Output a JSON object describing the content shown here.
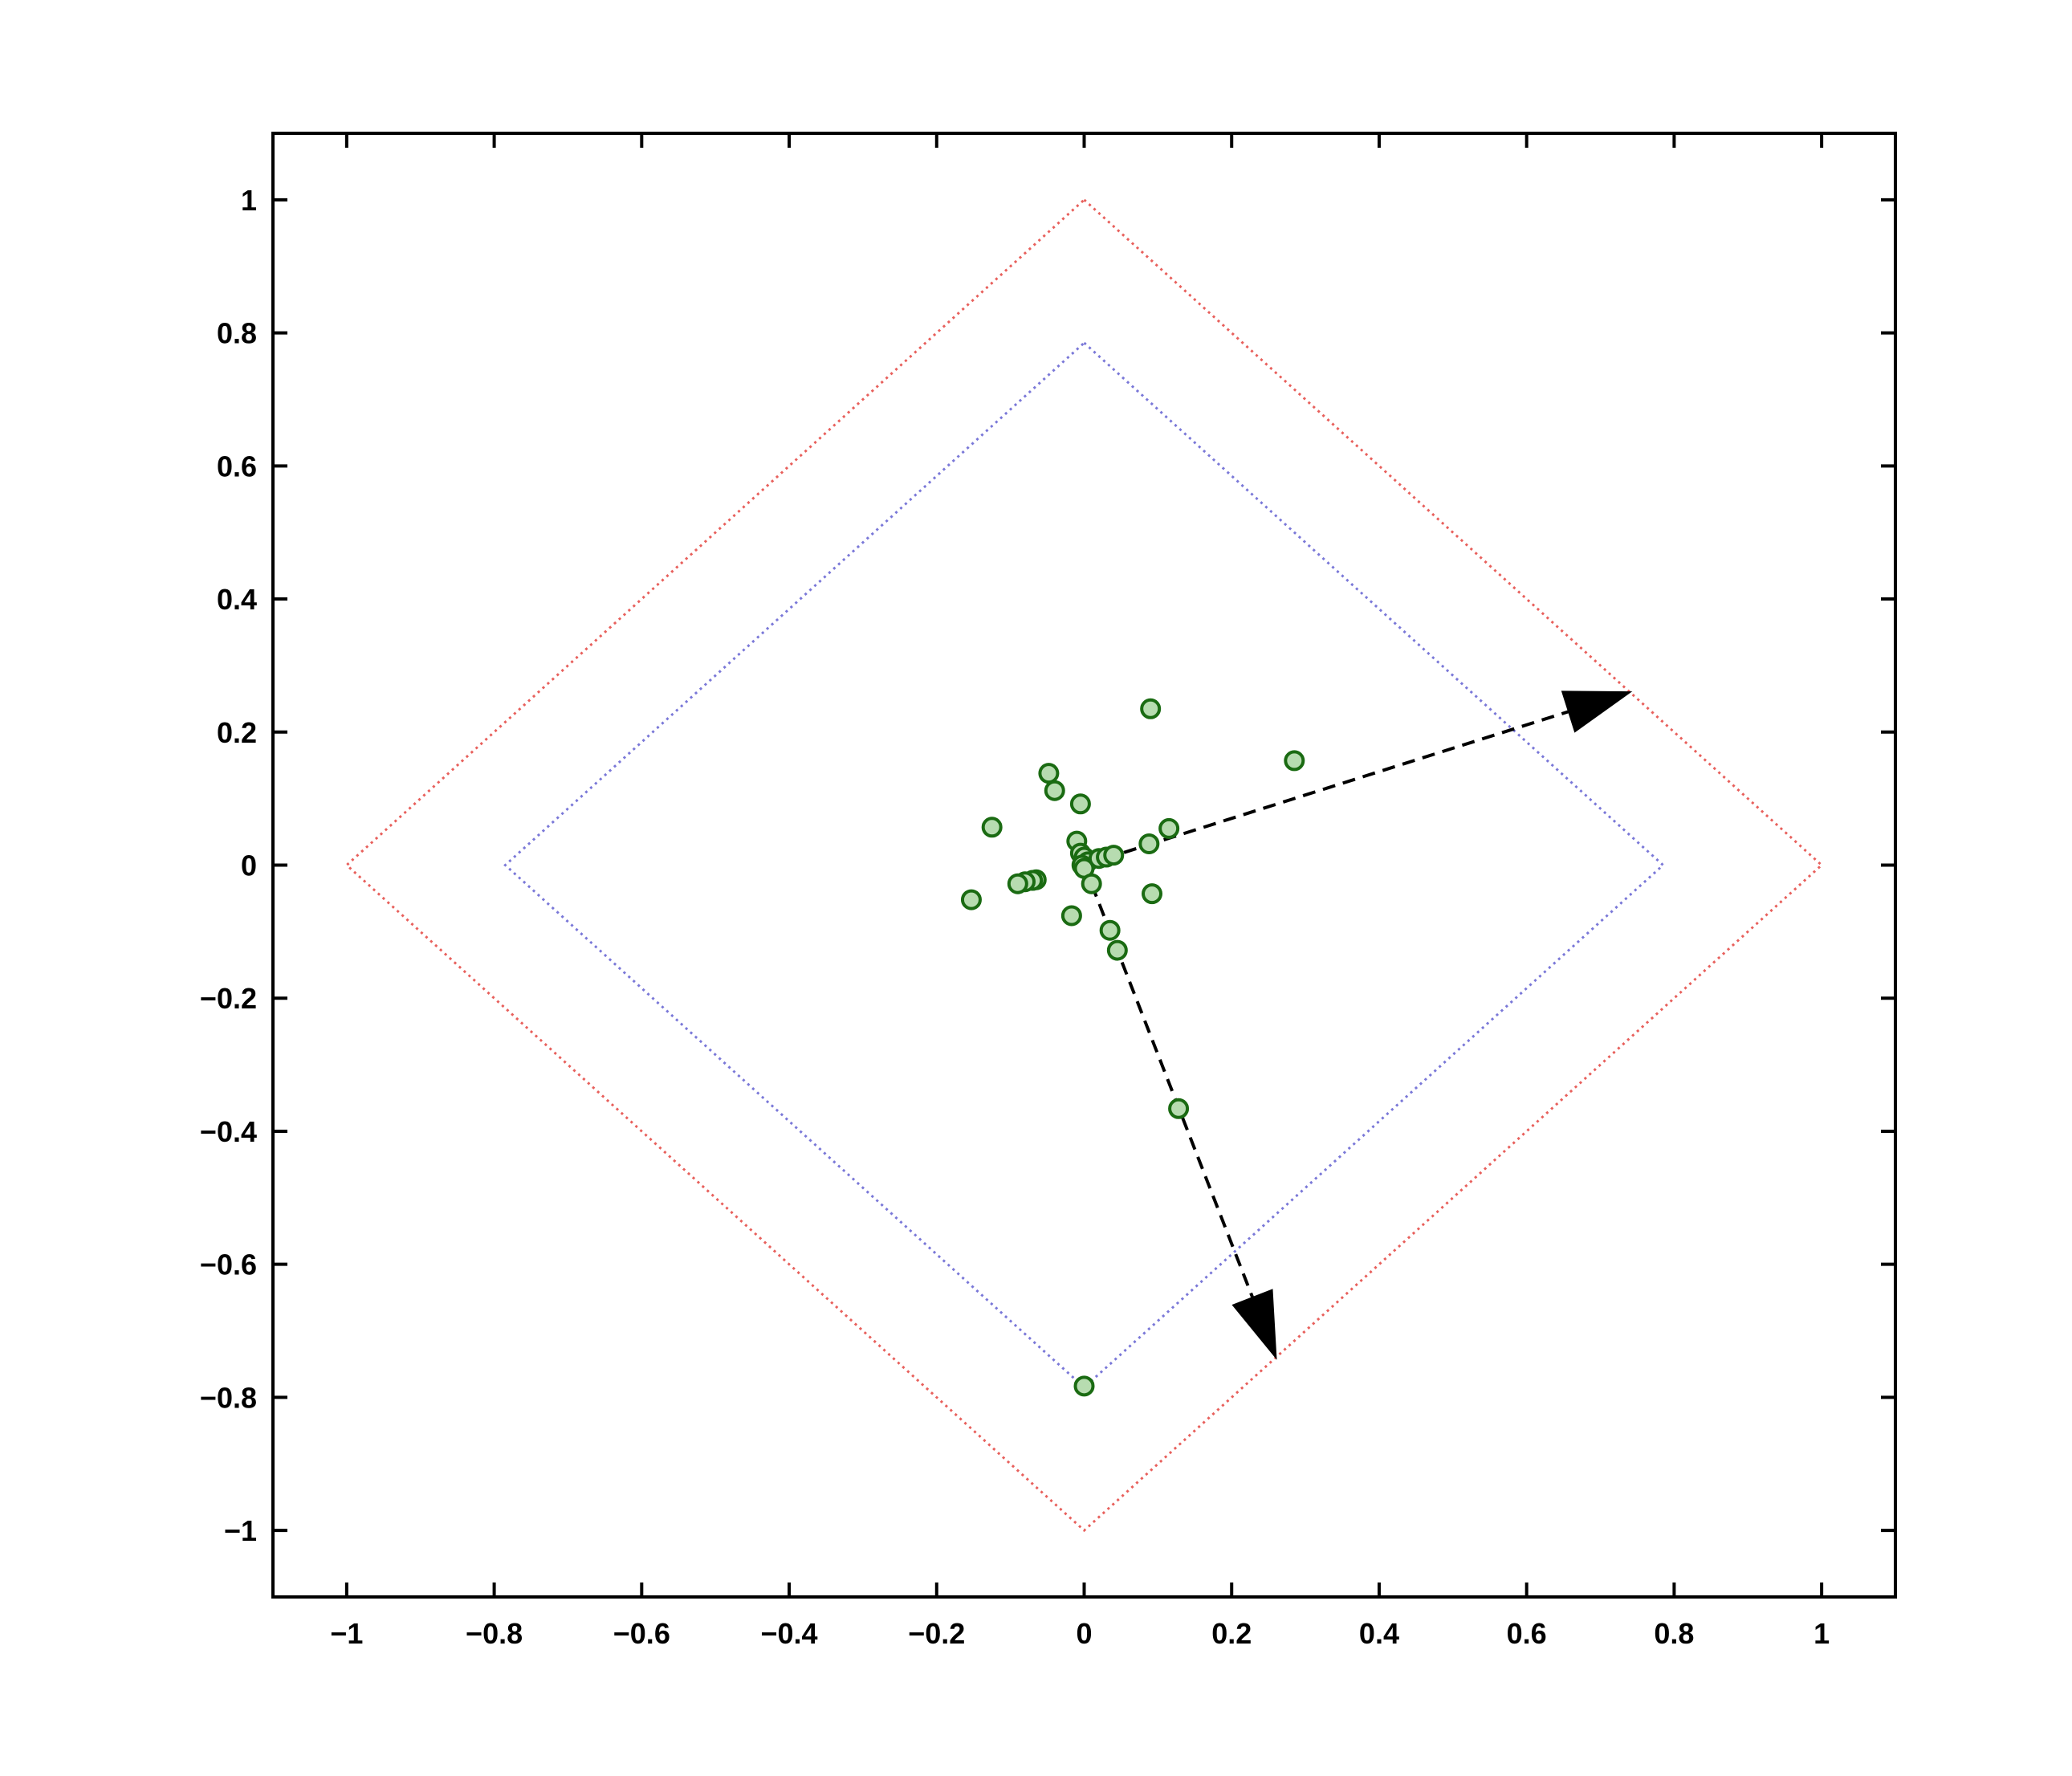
{
  "chart_data": {
    "type": "scatter",
    "title": "",
    "xlabel": "",
    "ylabel": "",
    "xlim": [
      -1.1,
      1.1
    ],
    "ylim": [
      -1.1,
      1.1
    ],
    "grid": false,
    "x_ticks": [
      -1,
      -0.8,
      -0.6,
      -0.4,
      -0.2,
      0,
      0.2,
      0.4,
      0.6,
      0.8,
      1
    ],
    "x_tick_labels": [
      "−1",
      "−0.8",
      "−0.6",
      "−0.4",
      "−0.2",
      "0",
      "0.2",
      "0.4",
      "0.6",
      "0.8",
      "1"
    ],
    "y_ticks": [
      1,
      0.8,
      0.6,
      0.4,
      0.2,
      0,
      -0.2,
      -0.4,
      -0.6,
      -0.8,
      -1
    ],
    "y_tick_labels": [
      "1",
      "0.8",
      "0.6",
      "0.4",
      "0.2",
      "0",
      "−0.2",
      "−0.4",
      "−0.6",
      "−0.8",
      "−1"
    ],
    "diamonds": [
      {
        "radius": 1.0,
        "color": "#e8605c",
        "style": "dotted"
      },
      {
        "radius": 0.785,
        "color": "#7a78d8",
        "style": "dotted"
      }
    ],
    "arrows": [
      {
        "from": [
          0,
          0
        ],
        "to": [
          0.74,
          0.26
        ],
        "color": "#000000",
        "style": "dashed"
      },
      {
        "from": [
          0,
          0
        ],
        "to": [
          0.26,
          -0.74
        ],
        "color": "#000000",
        "style": "dashed"
      }
    ],
    "points": {
      "x": [
        0.09,
        0.285,
        -0.048,
        -0.04,
        -0.005,
        -0.125,
        0.115,
        0.088,
        -0.01,
        -0.005,
        0.0,
        0.005,
        0.02,
        0.03,
        0.04,
        -0.003,
        0.0,
        0.01,
        -0.065,
        -0.07,
        -0.08,
        -0.09,
        -0.153,
        0.092,
        -0.017,
        0.035,
        0.045,
        0.128,
        0.0
      ],
      "y": [
        0.235,
        0.157,
        0.138,
        0.112,
        0.092,
        0.057,
        0.055,
        0.032,
        0.036,
        0.018,
        0.012,
        0.005,
        0.01,
        0.012,
        0.015,
        0.0,
        -0.005,
        -0.028,
        -0.022,
        -0.023,
        -0.025,
        -0.028,
        -0.052,
        -0.043,
        -0.076,
        -0.098,
        -0.128,
        -0.366,
        -0.783
      ],
      "fill": "#b7dcb0",
      "stroke": "#1a6b12"
    }
  }
}
